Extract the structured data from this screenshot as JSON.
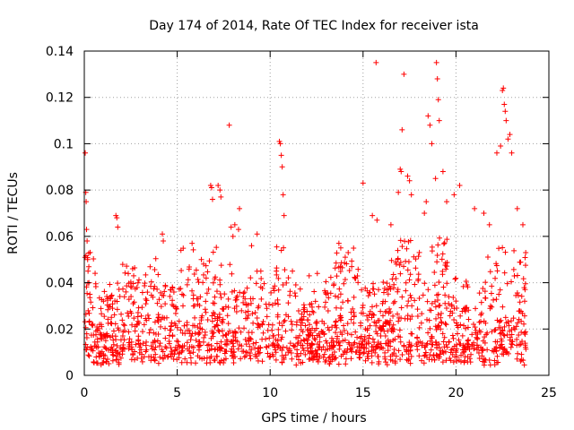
{
  "chart_data": {
    "type": "scatter",
    "title": "Day 174 of 2014, Rate Of TEC Index for receiver ista",
    "xlabel": "GPS time / hours",
    "ylabel": "ROTI / TECUs",
    "xlim": [
      0,
      25
    ],
    "ylim": [
      0,
      0.14
    ],
    "xticks": [
      0,
      5,
      10,
      15,
      20,
      25
    ],
    "xtick_labels": [
      "0",
      "5",
      "10",
      "15",
      "20",
      "25"
    ],
    "yticks": [
      0,
      0.02,
      0.04,
      0.06,
      0.08,
      0.1,
      0.12,
      0.14
    ],
    "ytick_labels": [
      "0",
      "0.02",
      "0.04",
      "0.06",
      "0.08",
      "0.1",
      "0.12",
      "0.14"
    ],
    "grid": true,
    "marker": "plus",
    "color": "#ff0000",
    "series": [
      {
        "name": "ROTI",
        "x": [
          0.05,
          0.08,
          0.1,
          0.12,
          0.15,
          0.18,
          0.2,
          0.25,
          0.3,
          1.7,
          1.75,
          1.8,
          2.6,
          4.2,
          4.25,
          5.2,
          5.8,
          6.3,
          6.8,
          6.85,
          6.9,
          7.2,
          7.3,
          7.35,
          7.8,
          7.9,
          8.0,
          8.1,
          8.3,
          8.35,
          9.0,
          9.3,
          9.5,
          10.5,
          10.55,
          10.6,
          10.65,
          10.7,
          10.75,
          11.2,
          12.1,
          13.7,
          13.8,
          14.2,
          15.0,
          15.5,
          15.7,
          15.75,
          16.5,
          16.9,
          17.0,
          17.05,
          17.1,
          17.2,
          17.4,
          17.5,
          17.6,
          18.3,
          18.4,
          18.5,
          18.6,
          18.7,
          18.9,
          18.95,
          19.0,
          19.05,
          19.1,
          19.3,
          19.5,
          19.9,
          20.2,
          21.0,
          21.5,
          21.8,
          22.2,
          22.4,
          22.5,
          22.55,
          22.6,
          22.65,
          22.7,
          22.8,
          22.9,
          23.0,
          23.3,
          23.6
        ],
        "y": [
          0.096,
          0.079,
          0.075,
          0.063,
          0.058,
          0.05,
          0.045,
          0.04,
          0.035,
          0.069,
          0.068,
          0.064,
          0.046,
          0.061,
          0.058,
          0.054,
          0.057,
          0.05,
          0.082,
          0.081,
          0.076,
          0.082,
          0.08,
          0.077,
          0.108,
          0.064,
          0.06,
          0.065,
          0.063,
          0.072,
          0.056,
          0.061,
          0.045,
          0.101,
          0.1,
          0.095,
          0.09,
          0.078,
          0.069,
          0.045,
          0.043,
          0.057,
          0.055,
          0.053,
          0.083,
          0.069,
          0.135,
          0.067,
          0.065,
          0.079,
          0.089,
          0.088,
          0.106,
          0.13,
          0.086,
          0.084,
          0.078,
          0.07,
          0.075,
          0.112,
          0.108,
          0.1,
          0.085,
          0.135,
          0.128,
          0.119,
          0.11,
          0.088,
          0.075,
          0.078,
          0.082,
          0.072,
          0.07,
          0.065,
          0.096,
          0.099,
          0.123,
          0.124,
          0.117,
          0.114,
          0.11,
          0.102,
          0.104,
          0.096,
          0.072,
          0.065
        ]
      }
    ]
  }
}
